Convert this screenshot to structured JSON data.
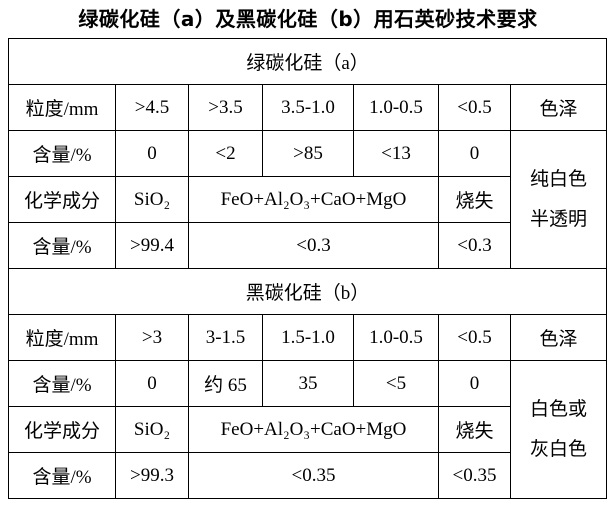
{
  "title": "绿碳化硅（a）及黑碳化硅（b）用石英砂技术要求",
  "sections": [
    {
      "title": "绿碳化硅（a）",
      "rows": [
        [
          "粒度/mm",
          ">4.5",
          ">3.5",
          "3.5-1.0",
          "1.0-0.5",
          "<0.5",
          "色泽"
        ],
        [
          "含量/%",
          "0",
          "<2",
          ">85",
          "<13",
          "0"
        ],
        [
          "化学成分",
          "SiO₂",
          "FeO+Al₂O₃+CaO+MgO",
          "烧失"
        ],
        [
          "含量/%",
          ">99.4",
          "<0.3",
          "<0.3"
        ]
      ],
      "color_note": [
        "纯白色",
        "半透明"
      ]
    },
    {
      "title": "黑碳化硅（b）",
      "rows": [
        [
          "粒度/mm",
          ">3",
          "3-1.5",
          "1.5-1.0",
          "1.0-0.5",
          "<0.5",
          "色泽"
        ],
        [
          "含量/%",
          "0",
          "约 65",
          "35",
          "<5",
          "0"
        ],
        [
          "化学成分",
          "SiO₂",
          "FeO+Al₂O₃+CaO+MgO",
          "烧失"
        ],
        [
          "含量/%",
          ">99.3",
          "<0.35",
          "<0.35"
        ]
      ],
      "color_note": [
        "白色或",
        "灰白色"
      ]
    }
  ]
}
